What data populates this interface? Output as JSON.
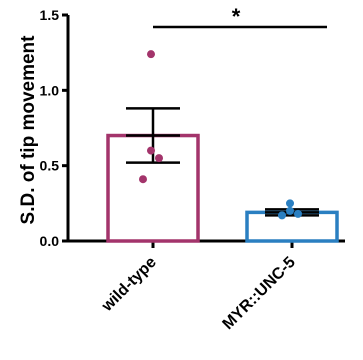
{
  "chart_data": {
    "type": "bar",
    "categories": [
      "wild-type",
      "MYR::UNC-5"
    ],
    "ylabel": "S.D. of tip movement",
    "ylim": [
      0,
      1.5
    ],
    "yticks": [
      0.0,
      0.5,
      1.0,
      1.5
    ],
    "ytick_labels": [
      "0.0",
      "0.5",
      "1.0",
      "1.5"
    ],
    "series": [
      {
        "values": [
          0.7,
          0.19
        ],
        "sem": [
          0.18,
          0.02
        ],
        "colors": [
          "#a3346b",
          "#2a7fc1"
        ]
      }
    ],
    "points": [
      [
        1.24,
        0.6,
        0.55,
        0.41
      ],
      [
        0.25,
        0.2,
        0.18,
        0.17
      ]
    ],
    "significance": {
      "label": "*",
      "between": [
        "wild-type",
        "MYR::UNC-5"
      ],
      "y": 1.42
    },
    "grid": false,
    "legend": "none"
  }
}
